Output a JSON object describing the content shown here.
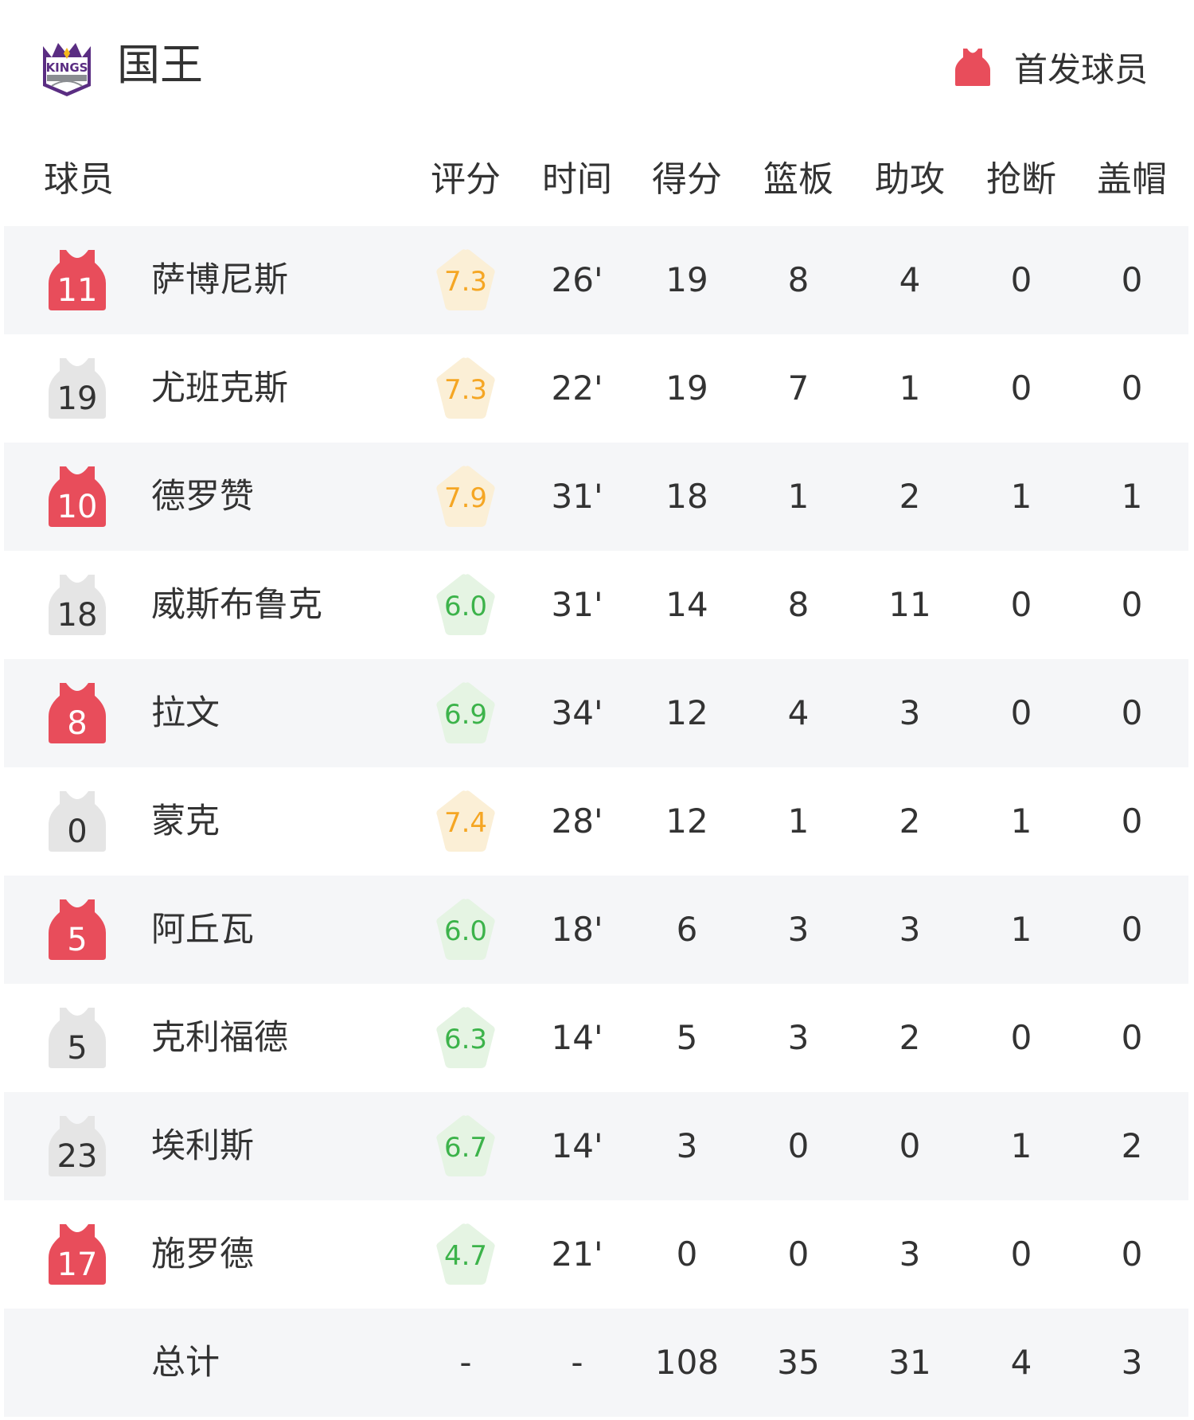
{
  "team": {
    "name": "国王",
    "logo_text": "KINGS",
    "logo_colors": {
      "purple": "#5a2d82",
      "gray": "#8a8d91",
      "gold": "#f5b81c"
    }
  },
  "legend": {
    "label": "首发球员",
    "icon": "jersey-icon",
    "color": "#e84d5b"
  },
  "columns": [
    "球员",
    "评分",
    "时间",
    "得分",
    "篮板",
    "助攻",
    "抢断",
    "盖帽"
  ],
  "colors": {
    "starter": "#e84d5b",
    "bench": "#e5e5e5",
    "rating_high_text": "#f5a623",
    "rating_high_bg": "#fbefd6",
    "rating_mid_text": "#3cb34a",
    "rating_mid_bg": "#e5f4e3",
    "row_alt_bg": "#f5f6f8"
  },
  "players": [
    {
      "number": "11",
      "name": "萨博尼斯",
      "starter": true,
      "rating": "7.3",
      "min": "26'",
      "pts": "19",
      "reb": "8",
      "ast": "4",
      "stl": "0",
      "blk": "0"
    },
    {
      "number": "19",
      "name": "尤班克斯",
      "starter": false,
      "rating": "7.3",
      "min": "22'",
      "pts": "19",
      "reb": "7",
      "ast": "1",
      "stl": "0",
      "blk": "0"
    },
    {
      "number": "10",
      "name": "德罗赞",
      "starter": true,
      "rating": "7.9",
      "min": "31'",
      "pts": "18",
      "reb": "1",
      "ast": "2",
      "stl": "1",
      "blk": "1"
    },
    {
      "number": "18",
      "name": "威斯布鲁克",
      "starter": false,
      "rating": "6.0",
      "min": "31'",
      "pts": "14",
      "reb": "8",
      "ast": "11",
      "stl": "0",
      "blk": "0"
    },
    {
      "number": "8",
      "name": "拉文",
      "starter": true,
      "rating": "6.9",
      "min": "34'",
      "pts": "12",
      "reb": "4",
      "ast": "3",
      "stl": "0",
      "blk": "0"
    },
    {
      "number": "0",
      "name": "蒙克",
      "starter": false,
      "rating": "7.4",
      "min": "28'",
      "pts": "12",
      "reb": "1",
      "ast": "2",
      "stl": "1",
      "blk": "0"
    },
    {
      "number": "5",
      "name": "阿丘瓦",
      "starter": true,
      "rating": "6.0",
      "min": "18'",
      "pts": "6",
      "reb": "3",
      "ast": "3",
      "stl": "1",
      "blk": "0"
    },
    {
      "number": "5",
      "name": "克利福德",
      "starter": false,
      "rating": "6.3",
      "min": "14'",
      "pts": "5",
      "reb": "3",
      "ast": "2",
      "stl": "0",
      "blk": "0"
    },
    {
      "number": "23",
      "name": "埃利斯",
      "starter": false,
      "rating": "6.7",
      "min": "14'",
      "pts": "3",
      "reb": "0",
      "ast": "0",
      "stl": "1",
      "blk": "2"
    },
    {
      "number": "17",
      "name": "施罗德",
      "starter": true,
      "rating": "4.7",
      "min": "21'",
      "pts": "0",
      "reb": "0",
      "ast": "3",
      "stl": "0",
      "blk": "0"
    }
  ],
  "totals": {
    "label": "总计",
    "rating": "-",
    "min": "-",
    "pts": "108",
    "reb": "35",
    "ast": "31",
    "stl": "4",
    "blk": "3"
  }
}
